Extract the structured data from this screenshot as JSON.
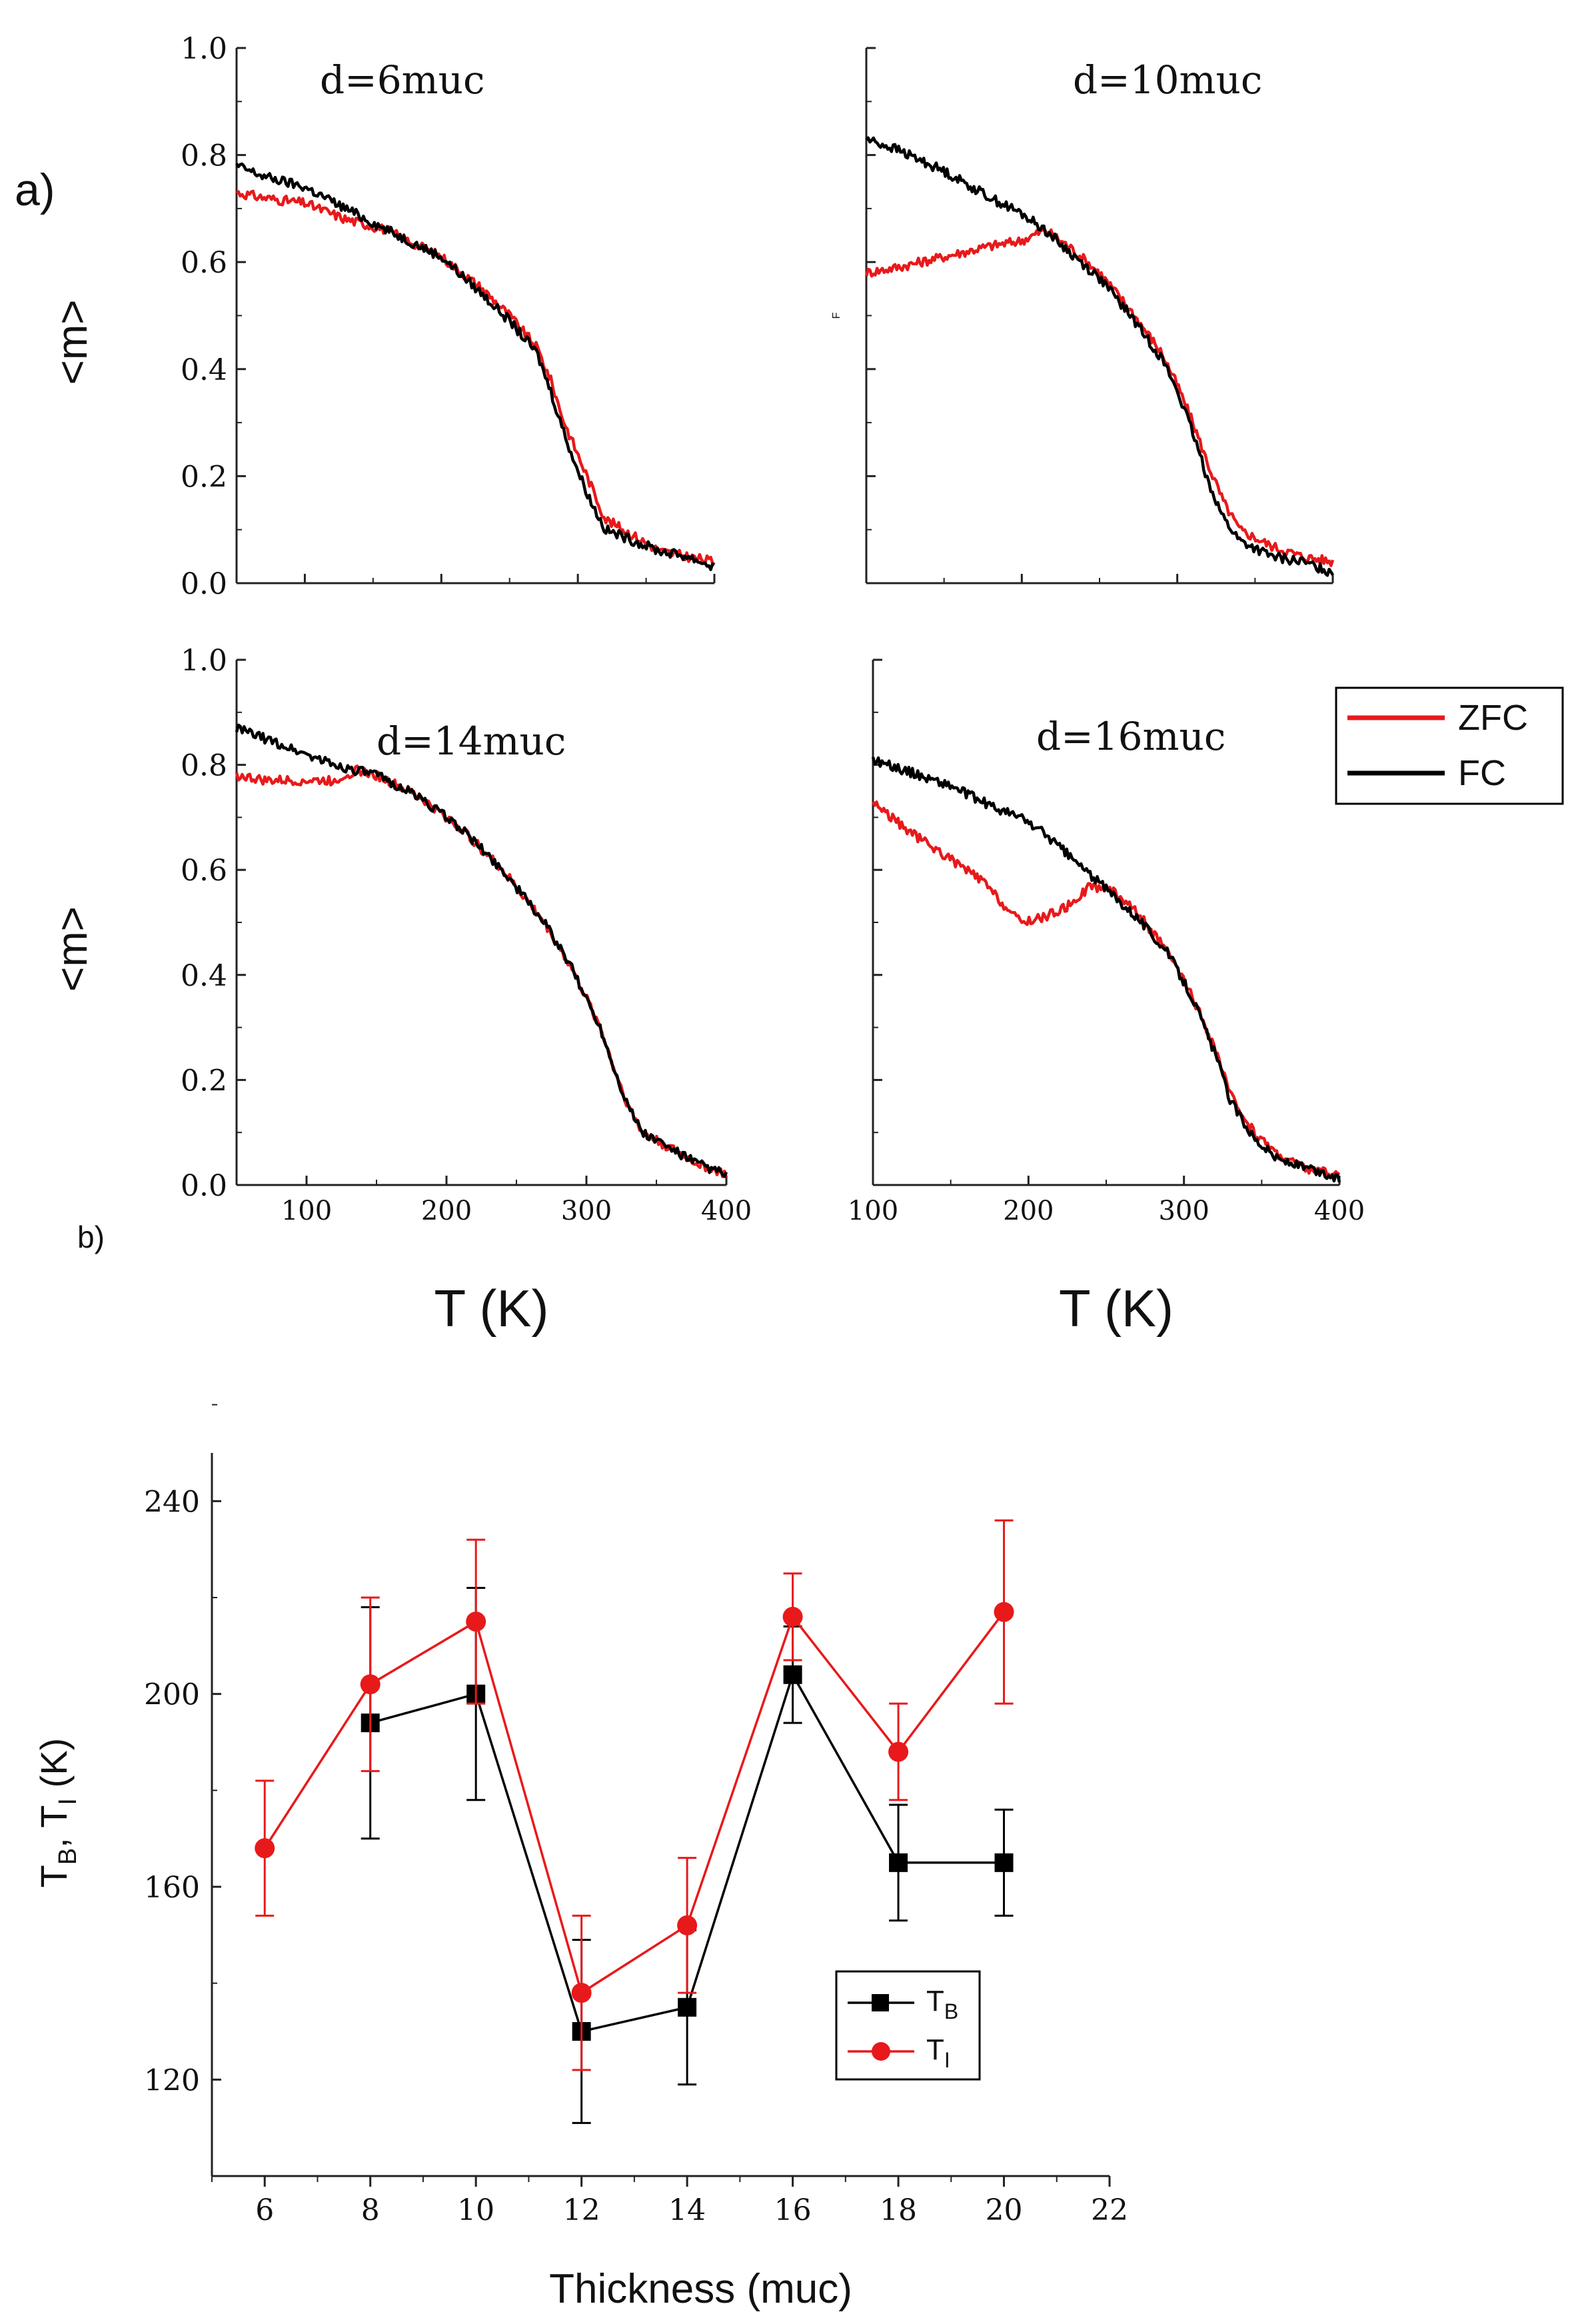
{
  "panel_a_label": "a)",
  "panel_b_label": "b)",
  "legend_a": [
    {
      "label": "ZFC",
      "color": "#e8191b"
    },
    {
      "label": "FC",
      "color": "#000000"
    }
  ],
  "colors": {
    "zfc": "#e8191b",
    "fc": "#000000",
    "tb": "#000000",
    "ti": "#e8191b",
    "axis": "#222222"
  },
  "chart_data": [
    {
      "type": "line",
      "annotation": "d=6muc",
      "ylabel": "<m>",
      "xlabel": "",
      "xlim": [
        50,
        400
      ],
      "ylim": [
        0,
        1.0
      ],
      "xticks": [
        100,
        200,
        300,
        400
      ],
      "xtick_labels_shown": false,
      "yticks": [
        0.0,
        0.2,
        0.4,
        0.6,
        0.8,
        1.0
      ],
      "ytick_labels": [
        "0.0",
        "0.2",
        "0.4",
        "0.6",
        "0.8",
        "1.0"
      ],
      "series": [
        {
          "name": "ZFC",
          "x": [
            50,
            70,
            100,
            130,
            160,
            200,
            230,
            250,
            270,
            280,
            290,
            300,
            310,
            320,
            340,
            360,
            380,
            400
          ],
          "y": [
            0.73,
            0.72,
            0.71,
            0.68,
            0.66,
            0.61,
            0.55,
            0.5,
            0.44,
            0.38,
            0.3,
            0.24,
            0.18,
            0.12,
            0.09,
            0.06,
            0.05,
            0.04
          ]
        },
        {
          "name": "FC",
          "x": [
            50,
            70,
            100,
            130,
            160,
            200,
            230,
            250,
            270,
            280,
            290,
            300,
            310,
            320,
            340,
            360,
            380,
            400
          ],
          "y": [
            0.78,
            0.76,
            0.74,
            0.7,
            0.66,
            0.61,
            0.54,
            0.49,
            0.43,
            0.36,
            0.28,
            0.21,
            0.15,
            0.1,
            0.08,
            0.06,
            0.05,
            0.03
          ]
        }
      ]
    },
    {
      "type": "line",
      "annotation": "d=10muc",
      "ylabel": "",
      "xlabel": "",
      "xlim": [
        100,
        400
      ],
      "ylim": [
        0,
        1.0
      ],
      "xticks": [
        100,
        200,
        300,
        400
      ],
      "xtick_labels_shown": false,
      "yticks": [
        0.0,
        0.2,
        0.4,
        0.6,
        0.8,
        1.0
      ],
      "ytick_labels": [],
      "stray_label": "F",
      "series": [
        {
          "name": "ZFC",
          "x": [
            100,
            120,
            150,
            180,
            200,
            215,
            230,
            250,
            270,
            290,
            300,
            310,
            320,
            330,
            340,
            360,
            380,
            400
          ],
          "y": [
            0.58,
            0.59,
            0.61,
            0.63,
            0.64,
            0.66,
            0.63,
            0.58,
            0.51,
            0.43,
            0.37,
            0.3,
            0.22,
            0.15,
            0.1,
            0.07,
            0.05,
            0.04
          ]
        },
        {
          "name": "FC",
          "x": [
            100,
            120,
            150,
            180,
            200,
            215,
            230,
            250,
            270,
            290,
            300,
            310,
            320,
            330,
            340,
            360,
            380,
            400
          ],
          "y": [
            0.83,
            0.81,
            0.77,
            0.72,
            0.69,
            0.66,
            0.62,
            0.57,
            0.5,
            0.42,
            0.36,
            0.28,
            0.19,
            0.12,
            0.08,
            0.05,
            0.04,
            0.02
          ]
        }
      ]
    },
    {
      "type": "line",
      "annotation": "d=14muc",
      "ylabel": "<m>",
      "xlabel": "T (K)",
      "xlim": [
        50,
        400
      ],
      "ylim": [
        0,
        1.0
      ],
      "xticks": [
        100,
        200,
        300,
        400
      ],
      "xtick_labels_shown": true,
      "xtick_labels": [
        "100",
        "200",
        "300",
        "400"
      ],
      "yticks": [
        0.0,
        0.2,
        0.4,
        0.6,
        0.8,
        1.0
      ],
      "ytick_labels": [
        "0.0",
        "0.2",
        "0.4",
        "0.6",
        "0.8",
        "1.0"
      ],
      "series": [
        {
          "name": "ZFC",
          "x": [
            50,
            70,
            100,
            120,
            135,
            150,
            180,
            210,
            240,
            270,
            290,
            310,
            320,
            330,
            340,
            360,
            380,
            400
          ],
          "y": [
            0.78,
            0.77,
            0.77,
            0.77,
            0.79,
            0.78,
            0.74,
            0.68,
            0.6,
            0.5,
            0.41,
            0.3,
            0.22,
            0.15,
            0.1,
            0.07,
            0.04,
            0.02
          ]
        },
        {
          "name": "FC",
          "x": [
            50,
            70,
            100,
            120,
            135,
            150,
            180,
            210,
            240,
            270,
            290,
            310,
            320,
            330,
            340,
            360,
            380,
            400
          ],
          "y": [
            0.87,
            0.85,
            0.82,
            0.8,
            0.79,
            0.78,
            0.74,
            0.68,
            0.6,
            0.5,
            0.41,
            0.3,
            0.22,
            0.15,
            0.1,
            0.07,
            0.04,
            0.02
          ]
        }
      ]
    },
    {
      "type": "line",
      "annotation": "d=16muc",
      "ylabel": "",
      "xlabel": "T (K)",
      "xlim": [
        100,
        400
      ],
      "ylim": [
        0,
        1.0
      ],
      "xticks": [
        100,
        200,
        300,
        400
      ],
      "xtick_labels_shown": true,
      "xtick_labels": [
        "100",
        "200",
        "300",
        "400"
      ],
      "yticks": [
        0.0,
        0.2,
        0.4,
        0.6,
        0.8,
        1.0
      ],
      "ytick_labels": [],
      "series": [
        {
          "name": "ZFC",
          "x": [
            100,
            120,
            150,
            170,
            185,
            195,
            210,
            225,
            240,
            255,
            270,
            290,
            305,
            320,
            330,
            345,
            360,
            380,
            400
          ],
          "y": [
            0.73,
            0.68,
            0.62,
            0.58,
            0.53,
            0.5,
            0.51,
            0.53,
            0.57,
            0.56,
            0.52,
            0.44,
            0.36,
            0.26,
            0.17,
            0.1,
            0.06,
            0.03,
            0.02
          ]
        },
        {
          "name": "FC",
          "x": [
            100,
            120,
            150,
            170,
            185,
            195,
            210,
            225,
            240,
            255,
            270,
            290,
            305,
            320,
            330,
            345,
            360,
            380,
            400
          ],
          "y": [
            0.81,
            0.79,
            0.76,
            0.73,
            0.71,
            0.7,
            0.67,
            0.63,
            0.59,
            0.55,
            0.51,
            0.44,
            0.36,
            0.25,
            0.16,
            0.09,
            0.05,
            0.03,
            0.01
          ]
        }
      ]
    },
    {
      "type": "scatter",
      "xlabel": "Thickness (muc)",
      "ylabel": "T_B, T_I (K)",
      "xlim": [
        5,
        22
      ],
      "ylim": [
        100,
        250
      ],
      "xticks": [
        6,
        8,
        10,
        12,
        14,
        16,
        18,
        20,
        22
      ],
      "xtick_labels": [
        "6",
        "8",
        "10",
        "12",
        "14",
        "16",
        "18",
        "20",
        "22"
      ],
      "yticks": [
        120,
        160,
        200,
        240
      ],
      "ytick_labels": [
        "120",
        "160",
        "200",
        "240"
      ],
      "legend": [
        {
          "base": "T",
          "sub": "B"
        },
        {
          "base": "T",
          "sub": "I"
        }
      ],
      "series": [
        {
          "name": "T_B",
          "marker": "square",
          "x": [
            8,
            10,
            12,
            14,
            16,
            18,
            20
          ],
          "y": [
            194,
            200,
            130,
            135,
            204,
            165,
            165
          ],
          "err": [
            24,
            22,
            19,
            16,
            10,
            12,
            11
          ]
        },
        {
          "name": "T_I",
          "marker": "circle",
          "x": [
            6,
            8,
            10,
            12,
            14,
            16,
            18,
            20
          ],
          "y": [
            168,
            202,
            215,
            138,
            152,
            216,
            188,
            217
          ],
          "err": [
            14,
            18,
            17,
            16,
            14,
            9,
            10,
            19
          ]
        }
      ]
    }
  ]
}
